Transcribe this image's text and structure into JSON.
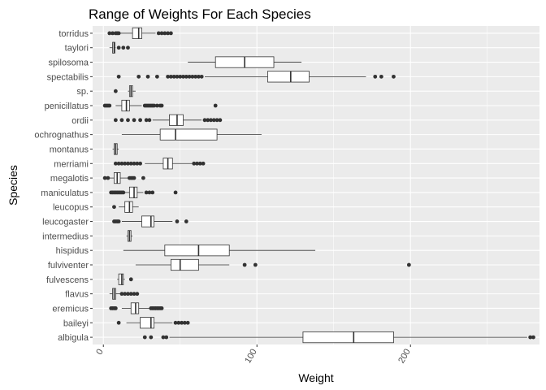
{
  "chart_data": {
    "type": "boxplot",
    "orientation": "horizontal",
    "title": "Range of Weights For Each Species",
    "xlabel": "Weight",
    "ylabel": "Species",
    "xlim": [
      -7,
      284
    ],
    "xticks": [
      0,
      100,
      200
    ],
    "x_tick_label_rotation": -60,
    "grid": true,
    "panel_background": "#ebebeb",
    "grid_color": "#ffffff",
    "box_fill": "#ffffff",
    "line_color": "#333333",
    "outlier_color": "#333333",
    "categories": [
      "torridus",
      "taylori",
      "spilosoma",
      "spectabilis",
      "sp.",
      "penicillatus",
      "ordii",
      "ochrognathus",
      "montanus",
      "merriami",
      "megalotis",
      "maniculatus",
      "leucopus",
      "leucogaster",
      "intermedius",
      "hispidus",
      "fulviventer",
      "fulvescens",
      "flavus",
      "eremicus",
      "baileyi",
      "albigula"
    ],
    "boxes": [
      {
        "species": "torridus",
        "whisker_low": 11,
        "q1": 19,
        "median": 23,
        "q3": 25,
        "whisker_high": 34,
        "outliers": [
          4,
          6,
          8,
          9,
          10,
          36,
          38,
          40,
          42,
          44
        ]
      },
      {
        "species": "taylori",
        "whisker_low": 4,
        "q1": 6,
        "median": 7,
        "q3": 7.5,
        "whisker_high": 8,
        "outliers": [
          10,
          13,
          16
        ]
      },
      {
        "species": "spilosoma",
        "whisker_low": 55,
        "q1": 73,
        "median": 92,
        "q3": 111,
        "whisker_high": 129,
        "outliers": []
      },
      {
        "species": "spectabilis",
        "whisker_low": 66,
        "q1": 107,
        "median": 122,
        "q3": 134,
        "whisker_high": 171,
        "outliers": [
          10,
          23,
          29,
          35,
          42,
          44,
          46,
          48,
          50,
          52,
          54,
          56,
          58,
          60,
          62,
          64,
          177,
          181,
          189
        ]
      },
      {
        "species": "sp.",
        "whisker_low": 16,
        "q1": 17,
        "median": 18,
        "q3": 19,
        "whisker_high": 21,
        "outliers": [
          8
        ]
      },
      {
        "species": "penicillatus",
        "whisker_low": 8,
        "q1": 12,
        "median": 15,
        "q3": 17,
        "whisker_high": 25,
        "outliers": [
          1,
          2,
          3,
          4,
          27,
          28,
          29,
          30,
          31,
          32,
          33,
          35,
          37,
          38,
          73
        ]
      },
      {
        "species": "ordii",
        "whisker_low": 32,
        "q1": 43,
        "median": 48,
        "q3": 52,
        "whisker_high": 64,
        "outliers": [
          8,
          12,
          16,
          20,
          24,
          28,
          30,
          66,
          68,
          70,
          72,
          74,
          76
        ]
      },
      {
        "species": "ochrognathus",
        "whisker_low": 12,
        "q1": 37,
        "median": 47,
        "q3": 74,
        "whisker_high": 103,
        "outliers": []
      },
      {
        "species": "montanus",
        "whisker_low": 6,
        "q1": 7,
        "median": 8,
        "q3": 9,
        "whisker_high": 10,
        "outliers": []
      },
      {
        "species": "merriami",
        "whisker_low": 27,
        "q1": 39,
        "median": 42,
        "q3": 45,
        "whisker_high": 58,
        "outliers": [
          8,
          10,
          12,
          14,
          16,
          18,
          20,
          22,
          24,
          59,
          61,
          63,
          65
        ]
      },
      {
        "species": "megalotis",
        "whisker_low": 4,
        "q1": 7,
        "median": 9,
        "q3": 11,
        "whisker_high": 16,
        "outliers": [
          1,
          3,
          17,
          18,
          19,
          20,
          26
        ]
      },
      {
        "species": "maniculatus",
        "whisker_low": 14,
        "q1": 17,
        "median": 20,
        "q3": 22,
        "whisker_high": 26,
        "outliers": [
          5,
          6,
          7,
          8,
          9,
          10,
          11,
          12,
          13,
          28,
          30,
          32,
          47
        ]
      },
      {
        "species": "leucopus",
        "whisker_low": 10,
        "q1": 14,
        "median": 17,
        "q3": 19,
        "whisker_high": 23,
        "outliers": [
          7
        ]
      },
      {
        "species": "leucogaster",
        "whisker_low": 12,
        "q1": 25,
        "median": 31,
        "q3": 33,
        "whisker_high": 45,
        "outliers": [
          7,
          8,
          9,
          10,
          48,
          54
        ]
      },
      {
        "species": "intermedius",
        "whisker_low": 15,
        "q1": 16,
        "median": 17,
        "q3": 18,
        "whisker_high": 19,
        "outliers": []
      },
      {
        "species": "hispidus",
        "whisker_low": 13,
        "q1": 40,
        "median": 62,
        "q3": 82,
        "whisker_high": 138,
        "outliers": []
      },
      {
        "species": "fulviventer",
        "whisker_low": 21,
        "q1": 44,
        "median": 50,
        "q3": 62,
        "whisker_high": 82,
        "outliers": [
          92,
          99,
          199
        ]
      },
      {
        "species": "fulvescens",
        "whisker_low": 9,
        "q1": 10,
        "median": 12,
        "q3": 13,
        "whisker_high": 14,
        "outliers": [
          18
        ]
      },
      {
        "species": "flavus",
        "whisker_low": 4,
        "q1": 6,
        "median": 7,
        "q3": 8,
        "whisker_high": 11,
        "outliers": [
          12,
          14,
          16,
          18,
          20,
          22
        ]
      },
      {
        "species": "eremicus",
        "whisker_low": 12,
        "q1": 18,
        "median": 21,
        "q3": 23,
        "whisker_high": 30,
        "outliers": [
          5,
          6,
          7,
          8,
          31,
          32,
          33,
          34,
          35,
          36,
          37,
          38
        ]
      },
      {
        "species": "baileyi",
        "whisker_low": 15,
        "q1": 24,
        "median": 31,
        "q3": 33,
        "whisker_high": 45,
        "outliers": [
          10,
          47,
          49,
          51,
          53,
          55
        ]
      },
      {
        "species": "albigula",
        "whisker_low": 43,
        "q1": 130,
        "median": 163,
        "q3": 189,
        "whisker_high": 276,
        "outliers": [
          27,
          31,
          39,
          41,
          278,
          280
        ]
      }
    ]
  }
}
